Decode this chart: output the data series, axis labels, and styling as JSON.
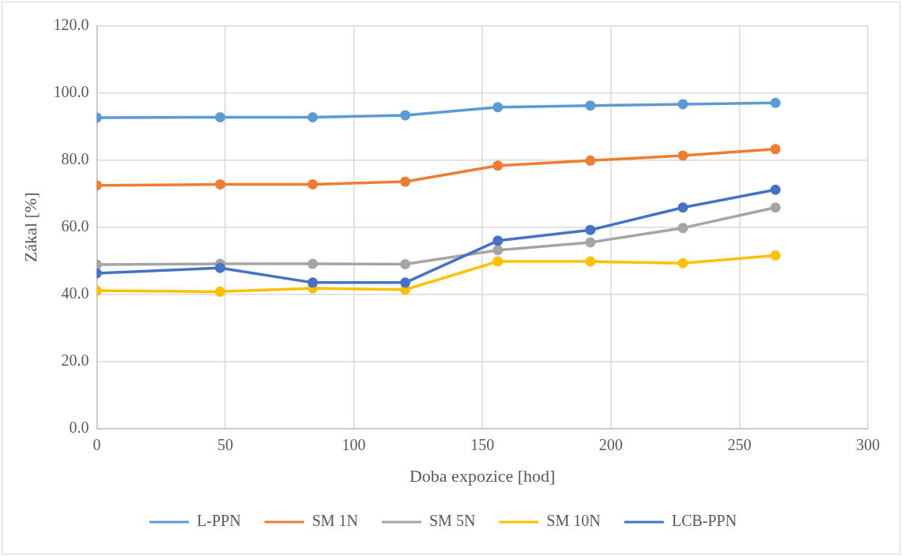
{
  "chart_data": {
    "type": "line",
    "xlabel": "Doba expozice [hod]",
    "ylabel": "Zákal [%]",
    "x": [
      0,
      48,
      84,
      120,
      156,
      192,
      228,
      264
    ],
    "xlim": [
      0,
      300
    ],
    "xticks": [
      0,
      50,
      100,
      150,
      200,
      250,
      300
    ],
    "ylim": [
      0,
      120
    ],
    "yticks": [
      {
        "value": 0,
        "label": "0.0"
      },
      {
        "value": 20,
        "label": "20.0"
      },
      {
        "value": 40,
        "label": "40.0"
      },
      {
        "value": 60,
        "label": "60.0"
      },
      {
        "value": 80,
        "label": "80.0"
      },
      {
        "value": 100,
        "label": "100.0"
      },
      {
        "value": 120,
        "label": "120.0"
      }
    ],
    "grid": true,
    "legend": "bottom",
    "marker": "circle",
    "line_style": "solid",
    "series": [
      {
        "name": "L-PPN",
        "color": "#5b9bd5",
        "values": [
          92.7,
          92.8,
          92.8,
          93.4,
          95.8,
          96.3,
          96.7,
          97.1
        ]
      },
      {
        "name": "SM 1N",
        "color": "#ed7d31",
        "values": [
          72.5,
          72.8,
          72.8,
          73.6,
          78.4,
          79.9,
          81.4,
          83.3
        ]
      },
      {
        "name": "SM 5N",
        "color": "#a5a5a5",
        "values": [
          48.9,
          49.1,
          49.1,
          49.0,
          53.2,
          55.5,
          59.8,
          65.9
        ]
      },
      {
        "name": "SM 10N",
        "color": "#ffc000",
        "values": [
          41.1,
          40.8,
          41.8,
          41.4,
          49.8,
          49.8,
          49.3,
          51.6
        ]
      },
      {
        "name": "LCB-PPN",
        "color": "#4472c4",
        "values": [
          46.3,
          47.9,
          43.5,
          43.5,
          56.0,
          59.2,
          65.9,
          71.2
        ]
      }
    ]
  }
}
